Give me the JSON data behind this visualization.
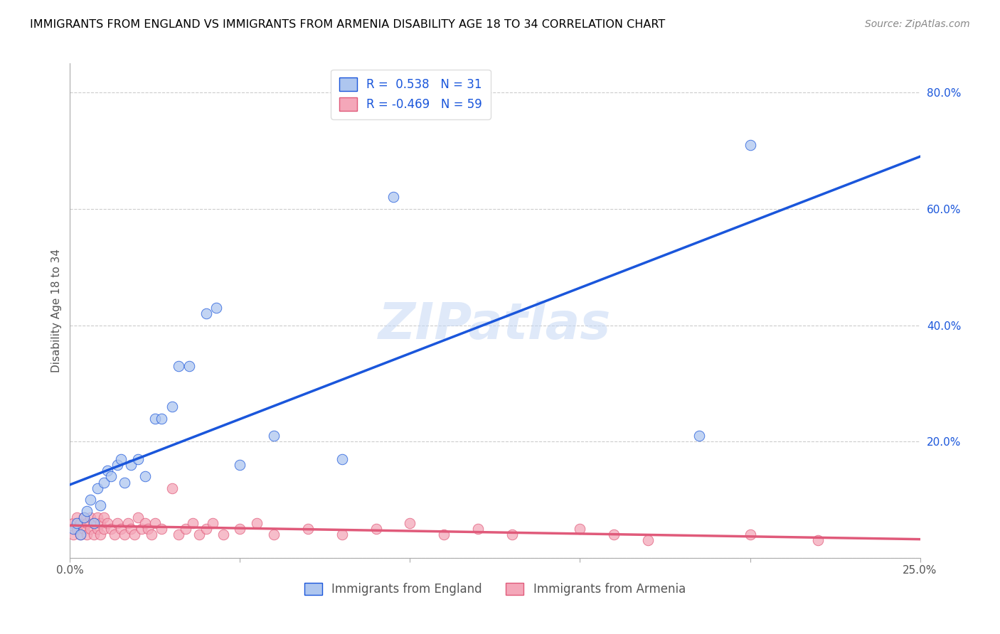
{
  "title": "IMMIGRANTS FROM ENGLAND VS IMMIGRANTS FROM ARMENIA DISABILITY AGE 18 TO 34 CORRELATION CHART",
  "source": "Source: ZipAtlas.com",
  "ylabel": "Disability Age 18 to 34",
  "x_min": 0.0,
  "x_max": 0.25,
  "y_min": 0.0,
  "y_max": 0.85,
  "x_ticks": [
    0.0,
    0.05,
    0.1,
    0.15,
    0.2,
    0.25
  ],
  "x_tick_labels": [
    "0.0%",
    "",
    "",
    "",
    "",
    "25.0%"
  ],
  "y_ticks_right": [
    0.0,
    0.2,
    0.4,
    0.6,
    0.8
  ],
  "y_tick_labels_right": [
    "",
    "20.0%",
    "40.0%",
    "60.0%",
    "80.0%"
  ],
  "england_R": 0.538,
  "england_N": 31,
  "armenia_R": -0.469,
  "armenia_N": 59,
  "england_color": "#aec6ef",
  "armenia_color": "#f4a7b9",
  "england_line_color": "#1a56db",
  "armenia_line_color": "#e05a7a",
  "legend_label_england": "Immigrants from England",
  "legend_label_armenia": "Immigrants from Armenia",
  "watermark": "ZIPatlas",
  "england_x": [
    0.001,
    0.002,
    0.003,
    0.004,
    0.005,
    0.006,
    0.007,
    0.008,
    0.009,
    0.01,
    0.011,
    0.012,
    0.014,
    0.015,
    0.016,
    0.018,
    0.02,
    0.022,
    0.025,
    0.027,
    0.03,
    0.032,
    0.035,
    0.04,
    0.043,
    0.05,
    0.06,
    0.08,
    0.095,
    0.185,
    0.2
  ],
  "england_y": [
    0.05,
    0.06,
    0.04,
    0.07,
    0.08,
    0.1,
    0.06,
    0.12,
    0.09,
    0.13,
    0.15,
    0.14,
    0.16,
    0.17,
    0.13,
    0.16,
    0.17,
    0.14,
    0.24,
    0.24,
    0.26,
    0.33,
    0.33,
    0.42,
    0.43,
    0.16,
    0.21,
    0.17,
    0.62,
    0.21,
    0.71
  ],
  "armenia_x": [
    0.001,
    0.001,
    0.002,
    0.002,
    0.003,
    0.003,
    0.004,
    0.004,
    0.005,
    0.005,
    0.006,
    0.006,
    0.007,
    0.007,
    0.008,
    0.008,
    0.009,
    0.009,
    0.01,
    0.01,
    0.011,
    0.012,
    0.013,
    0.014,
    0.015,
    0.016,
    0.017,
    0.018,
    0.019,
    0.02,
    0.021,
    0.022,
    0.023,
    0.024,
    0.025,
    0.027,
    0.03,
    0.032,
    0.034,
    0.036,
    0.038,
    0.04,
    0.042,
    0.045,
    0.05,
    0.055,
    0.06,
    0.07,
    0.08,
    0.09,
    0.1,
    0.11,
    0.12,
    0.13,
    0.15,
    0.16,
    0.17,
    0.2,
    0.22
  ],
  "armenia_y": [
    0.04,
    0.06,
    0.05,
    0.07,
    0.04,
    0.06,
    0.05,
    0.07,
    0.04,
    0.06,
    0.05,
    0.07,
    0.04,
    0.06,
    0.05,
    0.07,
    0.04,
    0.06,
    0.05,
    0.07,
    0.06,
    0.05,
    0.04,
    0.06,
    0.05,
    0.04,
    0.06,
    0.05,
    0.04,
    0.07,
    0.05,
    0.06,
    0.05,
    0.04,
    0.06,
    0.05,
    0.12,
    0.04,
    0.05,
    0.06,
    0.04,
    0.05,
    0.06,
    0.04,
    0.05,
    0.06,
    0.04,
    0.05,
    0.04,
    0.05,
    0.06,
    0.04,
    0.05,
    0.04,
    0.05,
    0.04,
    0.03,
    0.04,
    0.03
  ]
}
